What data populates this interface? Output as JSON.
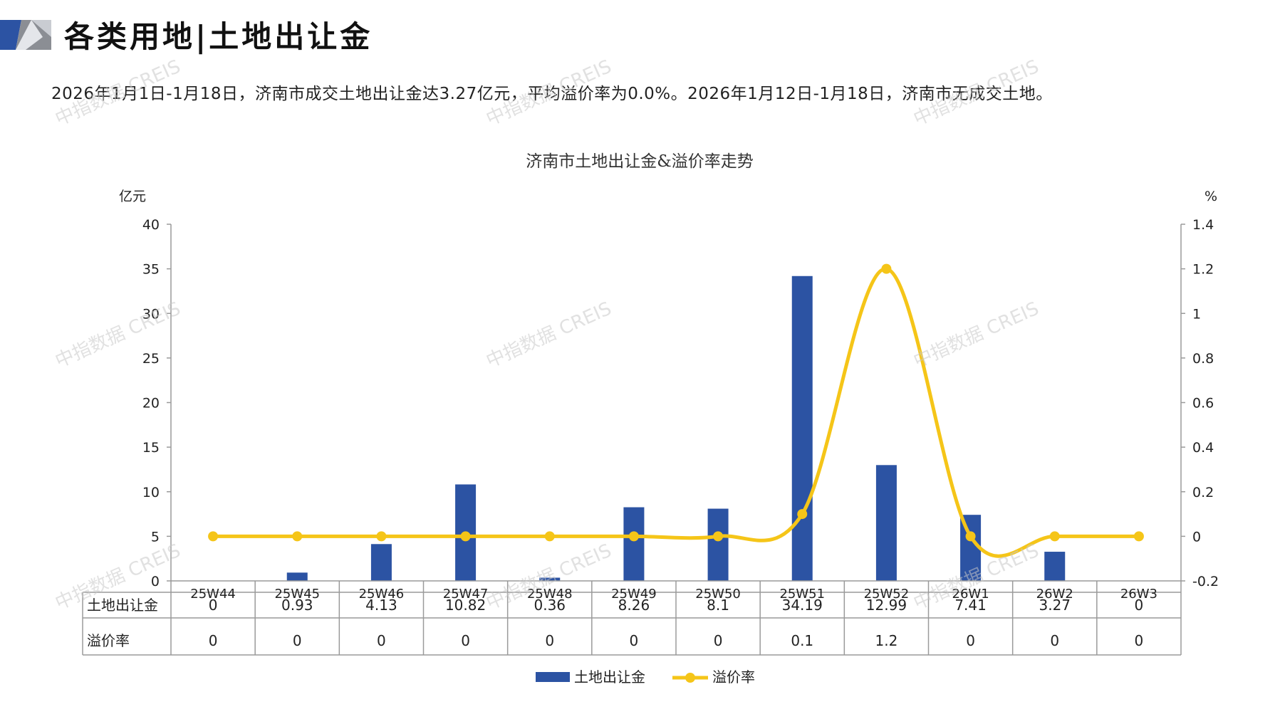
{
  "page": {
    "title": "各类用地|土地出让金",
    "summary": "2026年1月1日-1月18日，济南市成交土地出让金达3.27亿元，平均溢价率为0.0%。2026年1月12日-1月18日，济南市无成交土地。",
    "watermark": "中指数据 CREIS"
  },
  "chart_data": {
    "type": "bar",
    "title": "济南市土地出让金&溢价率走势",
    "categories": [
      "25W44",
      "25W45",
      "25W46",
      "25W47",
      "25W48",
      "25W49",
      "25W50",
      "25W51",
      "25W52",
      "26W1",
      "26W2",
      "26W3"
    ],
    "series": [
      {
        "name": "土地出让金",
        "type": "bar",
        "axis": "left",
        "color": "#2c53a3",
        "values": [
          0,
          0.93,
          4.13,
          10.82,
          0.36,
          8.26,
          8.1,
          34.19,
          12.99,
          7.41,
          3.27,
          0
        ],
        "labels": [
          "0",
          "0.93",
          "4.13",
          "10.82",
          "0.36",
          "8.26",
          "8.1",
          "34.19",
          "12.99",
          "7.41",
          "3.27",
          "0"
        ]
      },
      {
        "name": "溢价率",
        "type": "line",
        "axis": "right",
        "color": "#f5c518",
        "values": [
          0,
          0,
          0,
          0,
          0,
          0,
          0,
          0.1,
          1.2,
          0,
          0,
          0
        ],
        "labels": [
          "0",
          "0",
          "0",
          "0",
          "0",
          "0",
          "0",
          "0.1",
          "1.2",
          "0",
          "0",
          "0"
        ]
      }
    ],
    "y_left": {
      "unit": "亿元",
      "ylim": [
        0,
        40
      ],
      "ticks": [
        "0",
        "5",
        "10",
        "15",
        "20",
        "25",
        "30",
        "35",
        "40"
      ]
    },
    "y_right": {
      "unit": "%",
      "ylim": [
        -0.2,
        1.4
      ],
      "ticks": [
        "-0.2",
        "0",
        "0.2",
        "0.4",
        "0.6",
        "0.8",
        "1",
        "1.2",
        "1.4"
      ]
    },
    "table": true,
    "legend": "bottom-center",
    "grid": false
  }
}
